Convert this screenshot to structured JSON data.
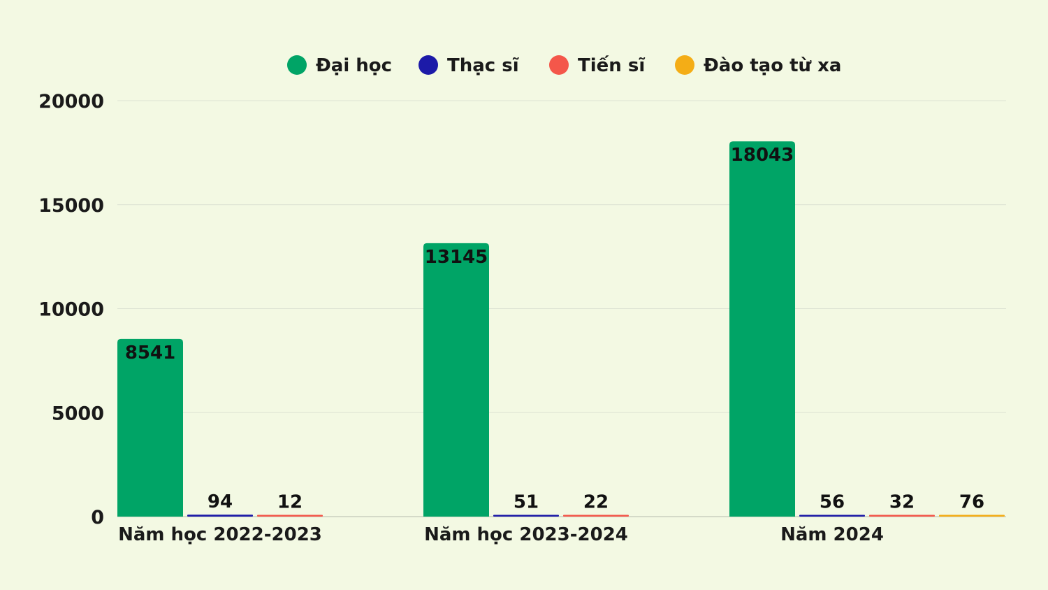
{
  "chart_data": {
    "type": "bar",
    "categories": [
      "Năm học 2022-2023",
      "Năm học 2023-2024",
      "Năm 2024"
    ],
    "series": [
      {
        "name": "Đại học",
        "color": "#00a466",
        "values": [
          8541,
          13145,
          18043
        ]
      },
      {
        "name": "Thạc sĩ",
        "color": "#1c1aa8",
        "values": [
          94,
          51,
          56
        ]
      },
      {
        "name": "Tiến sĩ",
        "color": "#f4574a",
        "values": [
          12,
          22,
          32
        ]
      },
      {
        "name": "Đào tạo từ xa",
        "color": "#f4ad16",
        "values": [
          null,
          null,
          76
        ]
      }
    ],
    "y_ticks": [
      0,
      5000,
      10000,
      15000,
      20000
    ],
    "ylim": [
      0,
      20000
    ],
    "grid": true,
    "legend_position": "top-center"
  }
}
